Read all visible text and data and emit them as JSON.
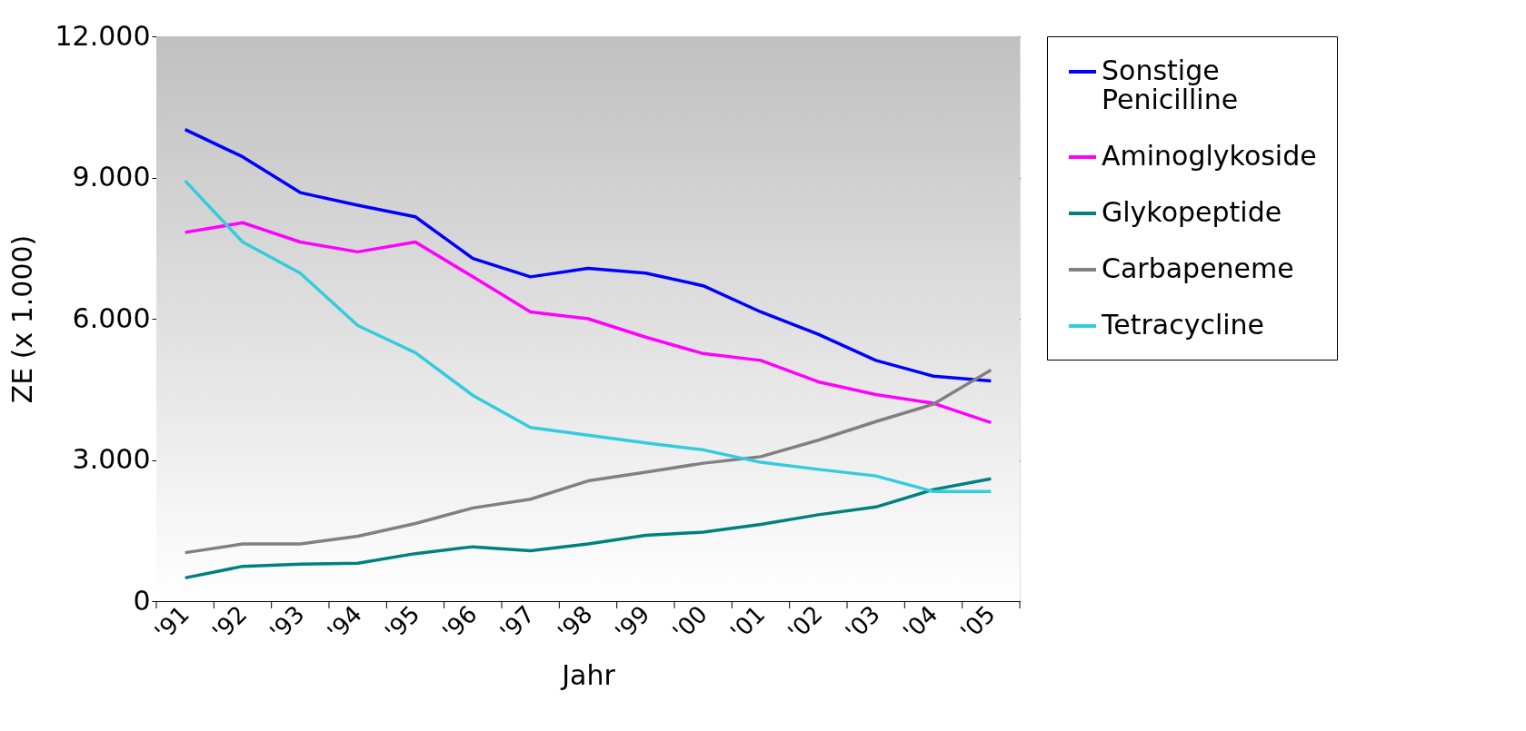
{
  "chart_data": {
    "type": "line",
    "xlabel": "Jahr",
    "ylabel": "ZE (x 1.000)",
    "categories": [
      "'91",
      "'92",
      "'93",
      "'94",
      "'95",
      "'96",
      "'97",
      "'98",
      "'99",
      "'00",
      "'01",
      "'02",
      "'03",
      "'04",
      "'05"
    ],
    "series": [
      {
        "name": "Sonstige Penicilline",
        "color": "#0000ff",
        "values": [
          10020,
          9440,
          8680,
          8410,
          8165,
          7280,
          6890,
          7070,
          6970,
          6700,
          6145,
          5670,
          5115,
          4780,
          4680
        ]
      },
      {
        "name": "Aminoglykoside",
        "color": "#ff00ff",
        "values": [
          7835,
          8040,
          7630,
          7420,
          7630,
          6890,
          6145,
          6000,
          5610,
          5260,
          5115,
          4660,
          4390,
          4205,
          3795
        ]
      },
      {
        "name": "Glykopeptide",
        "color": "#008080",
        "values": [
          495,
          740,
          785,
          805,
          1010,
          1155,
          1070,
          1215,
          1400,
          1465,
          1630,
          1835,
          2000,
          2370,
          2600
        ]
      },
      {
        "name": "Carbapeneme",
        "color": "#808080",
        "values": [
          1030,
          1215,
          1215,
          1380,
          1650,
          1980,
          2165,
          2555,
          2740,
          2930,
          3070,
          3420,
          3815,
          4185,
          4910
        ]
      },
      {
        "name": "Tetracycline",
        "color": "#33ccdd",
        "values": [
          8930,
          7630,
          6970,
          5855,
          5280,
          4370,
          3690,
          3525,
          3360,
          3215,
          2950,
          2800,
          2660,
          2330,
          2330
        ]
      }
    ],
    "ylim": [
      0,
      12000
    ],
    "yticks": [
      {
        "value": 0,
        "label": "0"
      },
      {
        "value": 3000,
        "label": "3.000"
      },
      {
        "value": 6000,
        "label": "6.000"
      },
      {
        "value": 9000,
        "label": "9.000"
      },
      {
        "value": 12000,
        "label": "12.000"
      }
    ],
    "grid": "y",
    "legend": "right",
    "marker": "none",
    "line_style": "solid"
  }
}
